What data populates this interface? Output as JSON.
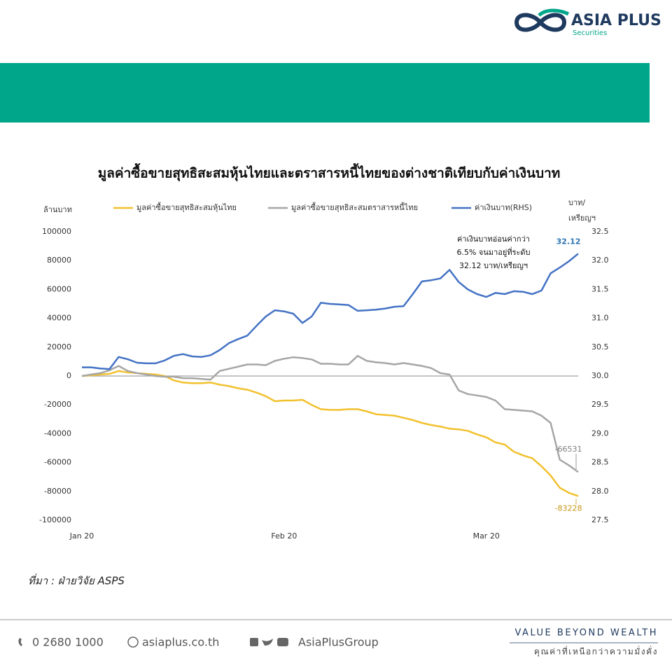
{
  "header": {
    "logo": "ASIA PLUS",
    "logo_sub": "Securities"
  },
  "chart_data": {
    "type": "line",
    "title": "มูลค่าซื้อขายสุทธิสะสมหุ้นไทยและตราสารหนี้ไทยของต่างชาติเทียบกับค่าเงินบาท",
    "y_label": "ล้านบาท",
    "y2_label": [
      "บาท/",
      "เหรียญฯ"
    ],
    "categories": [
      "Jan 20",
      null,
      null,
      null,
      null,
      null,
      null,
      null,
      null,
      null,
      null,
      null,
      null,
      null,
      null,
      null,
      null,
      null,
      null,
      null,
      null,
      null,
      "Feb 20",
      null,
      null,
      null,
      null,
      null,
      null,
      null,
      null,
      null,
      null,
      null,
      null,
      null,
      null,
      null,
      null,
      null,
      null,
      null,
      null,
      null,
      "Mar 20",
      null,
      null,
      null,
      null,
      null,
      null,
      null,
      null,
      null,
      null
    ],
    "ylim": [
      -100000,
      100000
    ],
    "yticks": [
      100000,
      80000,
      60000,
      40000,
      20000,
      0,
      -20000,
      -40000,
      -60000,
      -80000,
      -100000
    ],
    "y2lim": [
      27.5,
      32.5
    ],
    "y2ticks": [
      32.5,
      {
        "value": 32.0,
        "label": "32.0"
      },
      31.5,
      {
        "value": 31.0,
        "label": "31.0"
      },
      30.5,
      {
        "value": 30.0,
        "label": "30.0"
      },
      29.5,
      {
        "value": 29.0,
        "label": "29.0"
      },
      28.5,
      {
        "value": 28.0,
        "label": "28.0"
      },
      27.5
    ],
    "grid": false,
    "series": [
      {
        "name": "มูลค่าซื้อขายสุทธิสะสมหุ้นไทย",
        "color": "#f2c12e",
        "values": [
          0,
          500,
          1000,
          1500,
          3500,
          2500,
          2000,
          1500,
          1000,
          0,
          -3000,
          -4500,
          -5000,
          -5000,
          -4500,
          -6000,
          -7000,
          -8500,
          -9500,
          -11500,
          -14000,
          -17500,
          -17000,
          -17000,
          -16500,
          -20000,
          -23000,
          -23500,
          -23500,
          -23000,
          -23000,
          -24500,
          -26500,
          -27000,
          -27500,
          -29000,
          -30500,
          -32500,
          -34000,
          -35000,
          -36500,
          -37000,
          -38000,
          -40500,
          -42500,
          -46000,
          -47500,
          -52500,
          -55000,
          -57000,
          -62500,
          -69000,
          -77500,
          -81000,
          -83228
        ],
        "end_label": true,
        "label_color": "#c9961a"
      },
      {
        "name": "มูลค่าซื้อขายสุทธิสะสมตราสารหนี้ไทย",
        "color": "#a6a6a6",
        "values": [
          0,
          1000,
          2000,
          4000,
          7000,
          3500,
          2000,
          1000,
          0,
          -500,
          -500,
          -1500,
          -1500,
          -2000,
          -2500,
          3500,
          5000,
          6500,
          8000,
          8000,
          7500,
          10500,
          12000,
          13000,
          12500,
          11500,
          8500,
          8500,
          8000,
          8000,
          14000,
          10500,
          9500,
          9000,
          8000,
          9000,
          8000,
          7000,
          5500,
          2000,
          1000,
          -10000,
          -12500,
          -13500,
          -14500,
          -17000,
          -23000,
          -23500,
          -24000,
          -24500,
          -27500,
          -32500,
          -58000,
          -62000,
          -66531
        ],
        "end_label": true,
        "label_color": "#7f7f7f"
      },
      {
        "name": "ค่าเงินบาท(RHS)",
        "color": "#4472c4",
        "axis": "y2",
        "values": [
          30.15,
          30.15,
          30.13,
          30.12,
          30.33,
          30.29,
          30.23,
          30.22,
          30.22,
          30.27,
          30.35,
          30.38,
          30.34,
          30.33,
          30.36,
          30.45,
          30.57,
          30.64,
          30.7,
          30.87,
          31.03,
          31.14,
          31.12,
          31.08,
          30.92,
          31.03,
          31.27,
          31.25,
          31.24,
          31.23,
          31.13,
          31.14,
          31.15,
          31.17,
          31.2,
          31.21,
          31.42,
          31.64,
          31.66,
          31.69,
          31.84,
          31.63,
          31.5,
          31.42,
          31.37,
          31.44,
          31.42,
          31.47,
          31.46,
          31.42,
          31.48,
          31.78,
          31.88,
          31.99,
          32.12
        ],
        "end_label": true,
        "label_color": "#2e75b6"
      }
    ],
    "annotation": [
      "ค่าเงินบาทอ่อนค่ากว่า",
      "6.5% จนมาอยู่ที่ระดับ",
      "32.12 บาท/เหรียญฯ"
    ]
  },
  "source": "ที่มา : ฝ่ายวิจัย ASPS",
  "footer": {
    "phone": "0 2680 1000",
    "website": "asiaplus.co.th",
    "social": "AsiaPlusGroup",
    "slogan": "VALUE BEYOND WEALTH",
    "slogan_th": "คุณค่าที่เหนือกว่าความมั่งคั่ง"
  }
}
